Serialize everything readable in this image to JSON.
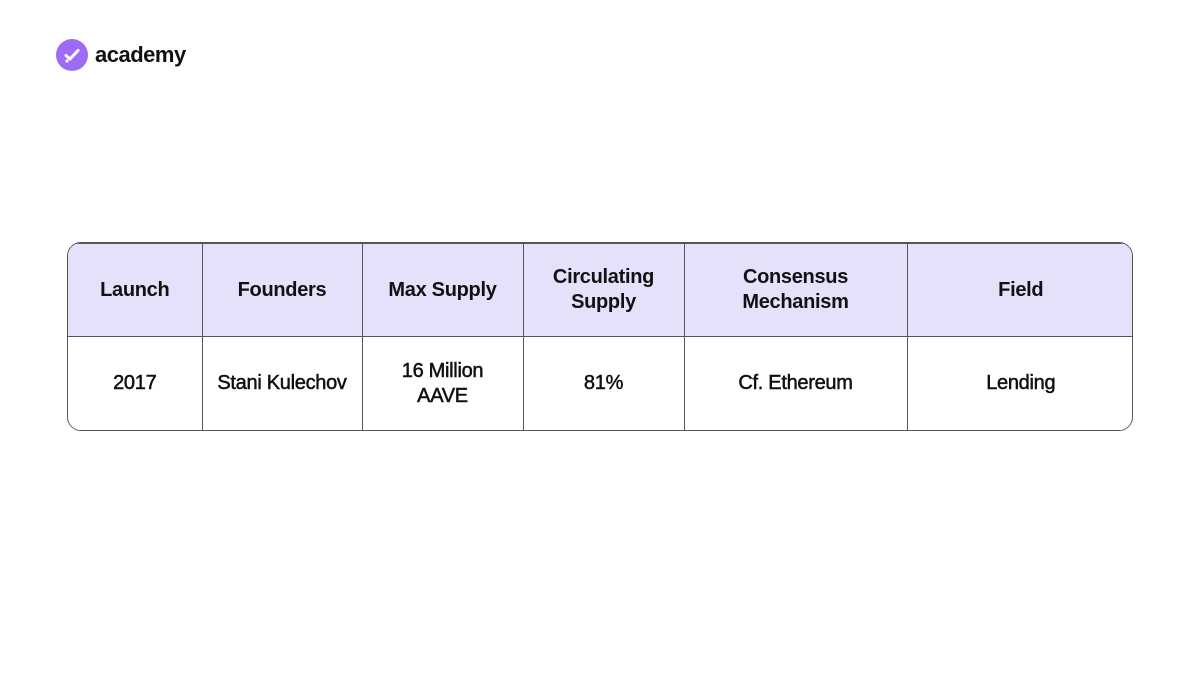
{
  "header": {
    "brand": "academy"
  },
  "table": {
    "columns": [
      "Launch",
      "Founders",
      "Max Supply",
      "Circulating Supply",
      "Consensus Mechanism",
      "Field"
    ],
    "rows": [
      [
        "2017",
        "Stani Kulechov",
        "16 Million AAVE",
        "81%",
        "Cf. Ethereum",
        "Lending"
      ]
    ]
  }
}
